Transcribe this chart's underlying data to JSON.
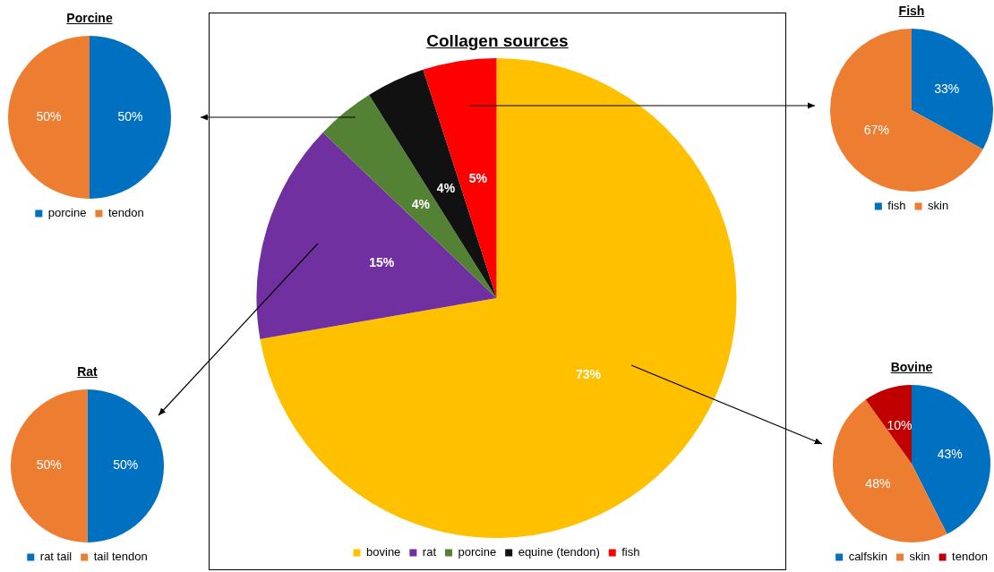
{
  "chart_data": [
    {
      "type": "pie",
      "title": "Porcine",
      "categories": [
        "porcine",
        "tendon"
      ],
      "values": [
        50,
        50
      ],
      "colors": [
        "#0070c0",
        "#ed7d31"
      ],
      "value_labels": [
        "50%",
        "50%"
      ],
      "legend": "bottom"
    },
    {
      "type": "pie",
      "title": "Collagen sources",
      "categories": [
        "bovine",
        "rat",
        "porcine",
        "equine (tendon)",
        "fish"
      ],
      "values": [
        73,
        15,
        4,
        4,
        5
      ],
      "colors": [
        "#ffc000",
        "#7030a0",
        "#548235",
        "#111111",
        "#ff0000"
      ],
      "value_labels": [
        "73%",
        "15%",
        "4%",
        "4%",
        "5%"
      ],
      "legend": "bottom"
    },
    {
      "type": "pie",
      "title": "Fish",
      "categories": [
        "fish",
        "skin"
      ],
      "values": [
        33,
        67
      ],
      "colors": [
        "#0070c0",
        "#ed7d31"
      ],
      "value_labels": [
        "33%",
        "67%"
      ],
      "legend": "bottom"
    },
    {
      "type": "pie",
      "title": "Rat",
      "categories": [
        "rat tail",
        "tail tendon"
      ],
      "values": [
        50,
        50
      ],
      "colors": [
        "#0070c0",
        "#ed7d31"
      ],
      "value_labels": [
        "50%",
        "50%"
      ],
      "legend": "bottom"
    },
    {
      "type": "pie",
      "title": "Bovine",
      "categories": [
        "calfskin",
        "skin",
        "tendon"
      ],
      "values": [
        43,
        48,
        10
      ],
      "colors": [
        "#0070c0",
        "#ed7d31",
        "#c00000"
      ],
      "value_labels": [
        "43%",
        "48%",
        "10%"
      ],
      "legend": "bottom"
    }
  ]
}
